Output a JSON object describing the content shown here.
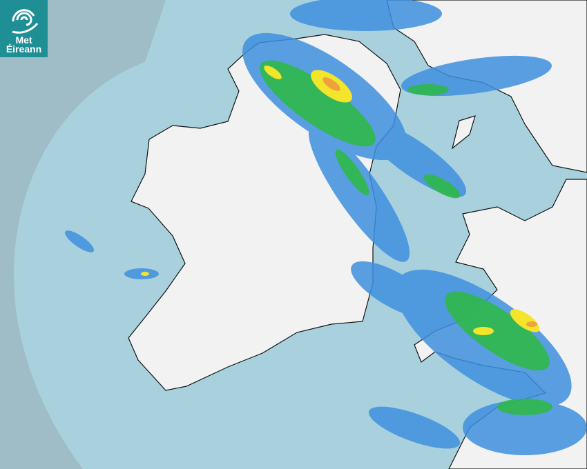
{
  "logo": {
    "line1": "Met",
    "line2": "Éireann",
    "brand_color": "#1f8f96"
  },
  "map": {
    "type": "rainfall-radar",
    "colors": {
      "outside_coverage": "#9ebdc7",
      "radar_coverage": "#a9d1dd",
      "land": "#f2f2f2",
      "rain_light": "#3f8fe0",
      "rain_moderate": "#2fb84a",
      "rain_heavy": "#f2e52a",
      "rain_very_heavy": "#f0a23a"
    }
  }
}
